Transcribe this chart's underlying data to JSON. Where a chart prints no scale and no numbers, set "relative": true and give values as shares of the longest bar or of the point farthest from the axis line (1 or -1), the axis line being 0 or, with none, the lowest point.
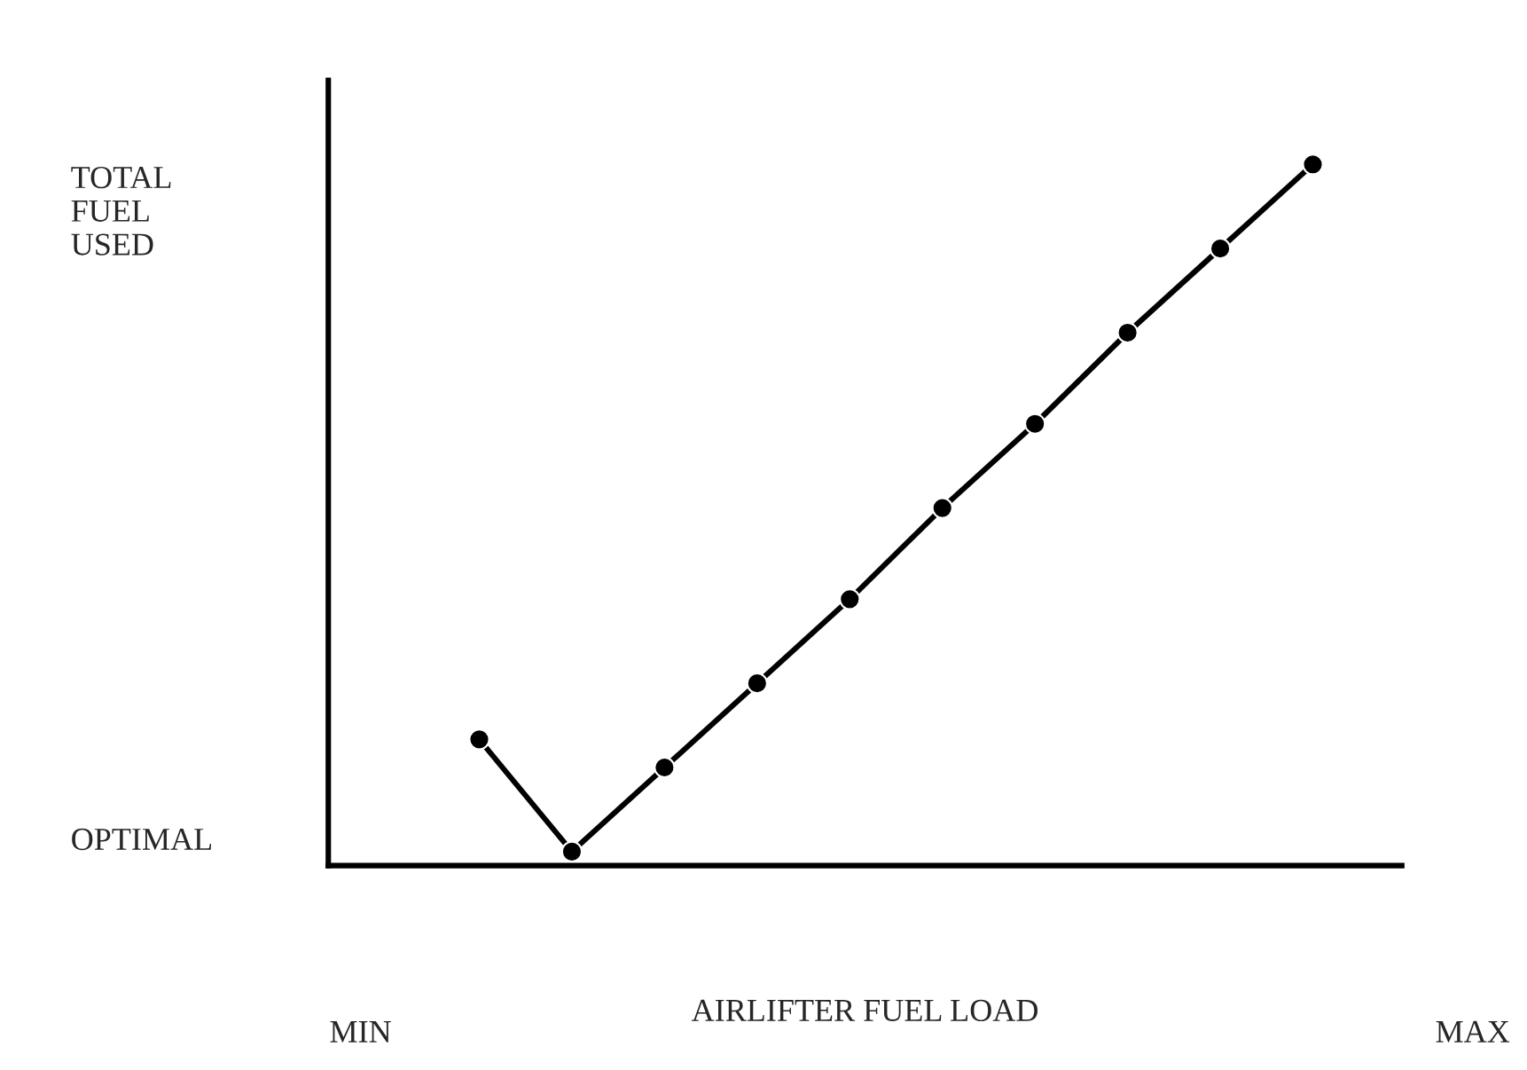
{
  "chart_data": {
    "type": "line",
    "relative": true,
    "xlabel": "AIRLIFTER FUEL LOAD",
    "annotations": [
      "TOTAL\nFUEL\nUSED",
      "OPTIMAL",
      "MIN",
      "MAX"
    ],
    "categories": [
      null,
      null,
      null,
      null,
      null,
      null,
      null,
      null,
      null,
      null
    ],
    "series": [
      {
        "color": "#000000",
        "values": [
          0.18,
          0.02,
          0.14,
          0.26,
          0.38,
          0.51,
          0.63,
          0.76,
          0.88,
          1.0
        ]
      }
    ],
    "marker": "circle",
    "line_style": "solid"
  }
}
